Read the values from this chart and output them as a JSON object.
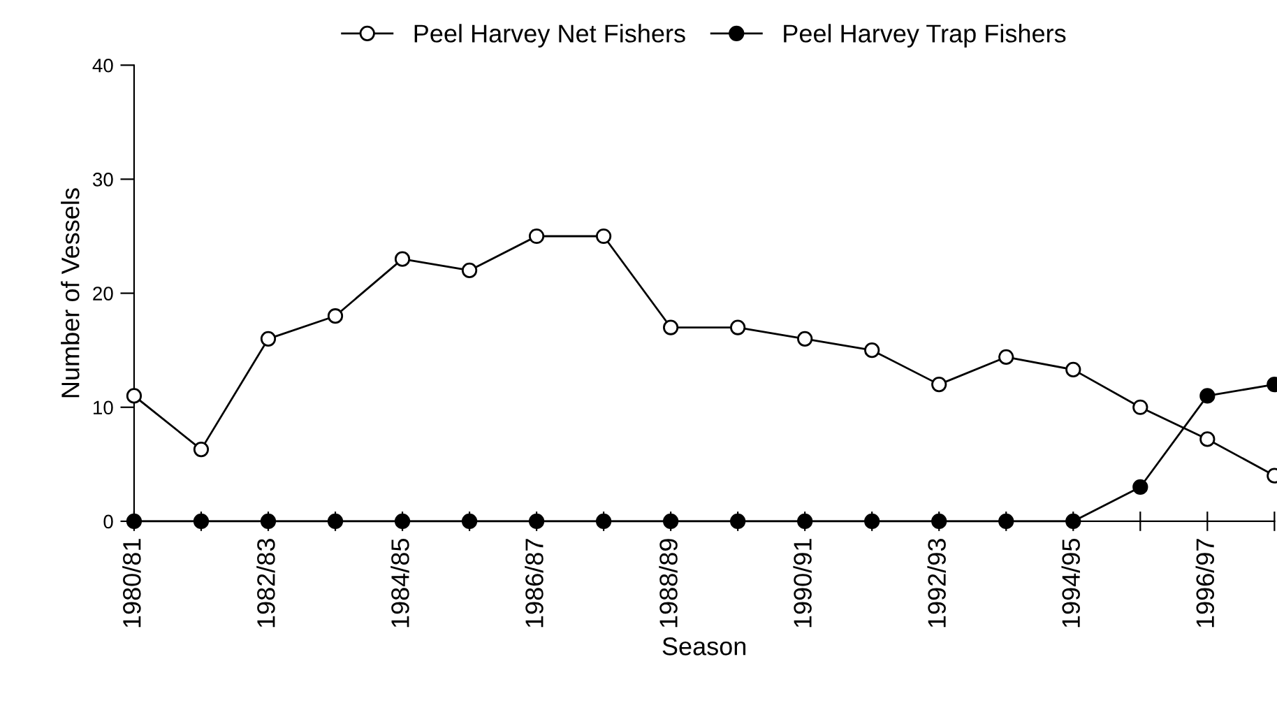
{
  "chart_data": {
    "type": "line",
    "xlabel": "Season",
    "ylabel": "Number of Vessels",
    "categories": [
      "1980/81",
      null,
      "1982/83",
      null,
      "1984/85",
      null,
      "1986/87",
      null,
      "1988/89",
      null,
      "1990/91",
      null,
      "1992/93",
      null,
      "1994/95",
      null,
      "1996/97",
      null
    ],
    "series": [
      {
        "name": "Peel Harvey Net Fishers",
        "color": "#000000",
        "marker": "circle",
        "values": [
          11,
          6.3,
          16,
          18,
          23,
          22,
          25,
          25,
          17,
          17,
          16,
          15,
          12,
          14.4,
          13.3,
          10,
          7.2,
          4
        ]
      },
      {
        "name": "Peel Harvey Trap Fishers",
        "color": "#000000",
        "marker": "circle",
        "values": [
          0,
          0,
          0,
          0,
          0,
          0,
          0,
          0,
          0,
          0,
          0,
          0,
          0,
          0,
          0,
          3,
          11,
          12
        ]
      }
    ],
    "ylim": [
      0,
      40
    ],
    "yticks": [
      0,
      10,
      20,
      30,
      40
    ],
    "grid": false,
    "legend": "top"
  }
}
